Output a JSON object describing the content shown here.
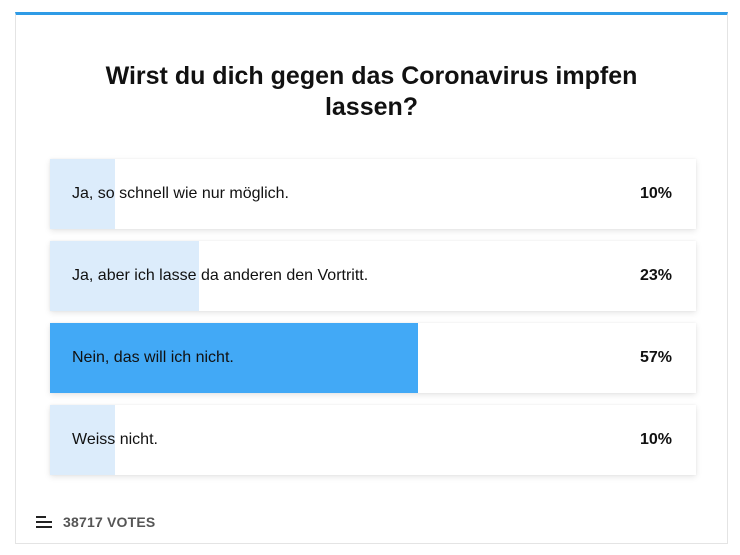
{
  "poll": {
    "question": "Wirst du dich gegen das Coronavirus impfen lassen?",
    "options": [
      {
        "label": "Ja, so schnell wie nur möglich.",
        "percent_text": "10%",
        "percent": 10,
        "selected": false
      },
      {
        "label": "Ja, aber ich lasse da anderen den Vortritt.",
        "percent_text": "23%",
        "percent": 23,
        "selected": false
      },
      {
        "label": "Nein, das will ich nicht.",
        "percent_text": "57%",
        "percent": 57,
        "selected": true
      },
      {
        "label": "Weiss nicht.",
        "percent_text": "10%",
        "percent": 10,
        "selected": false
      }
    ],
    "votes_text": "38717 VOTES",
    "votes_icon": "menu-lines-icon"
  },
  "colors": {
    "accent": "#2f9be6",
    "fill_light": "#dcecfb",
    "fill_selected": "#42a9f6"
  }
}
